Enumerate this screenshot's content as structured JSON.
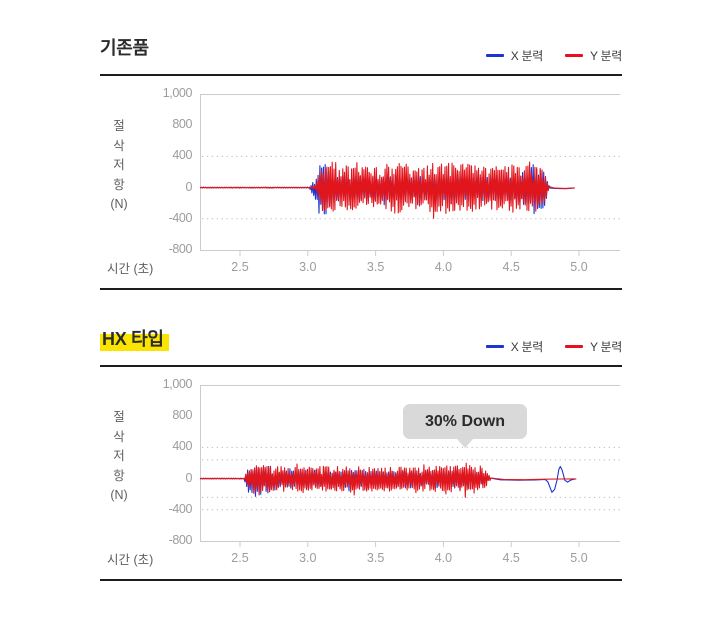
{
  "legend": {
    "x_label": "X 분력",
    "y_label": "Y 분력"
  },
  "axes": {
    "y_ticks": [
      "1,000",
      "800",
      "400",
      "0",
      "-400",
      "-800"
    ],
    "x_ticks": [
      "2.5",
      "3.0",
      "3.5",
      "4.0",
      "4.5",
      "5.0"
    ],
    "y_unit_chars": [
      "절",
      "삭",
      "저",
      "항",
      "(N)"
    ],
    "x_unit": "시간 (초)"
  },
  "colors": {
    "x_series": "#1b35cf",
    "y_series": "#e1151c",
    "legend_x": "#1b35cf",
    "legend_y": "#e8101e",
    "title_highlight": "#fbe400",
    "separator": "#1d1d1d",
    "axis_line": "#cccccc",
    "gridline": "#bdbdbd",
    "tick_label": "#9c9c9c",
    "callout_bg": "#d9d9d9",
    "callout_text": "#2b2b2b"
  },
  "sections": [
    {
      "title": "기존품",
      "highlighted": false
    },
    {
      "title": "HX 타입",
      "highlighted": true
    }
  ],
  "chart_data": [
    {
      "type": "line",
      "title": "기존품",
      "x_label": "시간 (초)",
      "y_label": "절삭저항(N)",
      "x_ticks": [
        2.5,
        3.0,
        3.5,
        4.0,
        4.5,
        5.0
      ],
      "y_tick_labels": [
        "1,000",
        "800",
        "400",
        "0",
        "-400",
        "-800"
      ],
      "y_tick_values": [
        1000,
        800,
        400,
        0,
        -400,
        -800
      ],
      "x_range": [
        2.2,
        5.31
      ],
      "grid": "dotted",
      "gridline_values": [
        400,
        -400
      ],
      "legend_position": "top-right",
      "description": "Flat near 0 N until ~3.05 s, heavy oscillation of roughly ±250 to ±430 N from ~3.1 s to ~4.77 s, then flat near 0 N until ~4.97 s",
      "envelope_units": "[time_s, upper_amplitude_N, lower_amplitude_N]",
      "series": [
        {
          "name": "X 분력",
          "color": "#1b35cf",
          "seed": 11,
          "noise_x_range": [
            2.205,
            4.785
          ],
          "envelope": [
            [
              2.205,
              5,
              5
            ],
            [
              3.01,
              5,
              5
            ],
            [
              3.05,
              80,
              150
            ],
            [
              3.08,
              300,
              380
            ],
            [
              3.13,
              280,
              360
            ],
            [
              3.2,
              150,
              180
            ],
            [
              3.6,
              150,
              170
            ],
            [
              4.1,
              150,
              170
            ],
            [
              4.55,
              170,
              200
            ],
            [
              4.66,
              280,
              340
            ],
            [
              4.73,
              260,
              330
            ],
            [
              4.77,
              60,
              80
            ],
            [
              4.785,
              8,
              8
            ]
          ],
          "tail": [
            [
              4.83,
              -12
            ],
            [
              4.9,
              -14
            ],
            [
              4.96,
              -6
            ]
          ]
        },
        {
          "name": "Y 분력",
          "color": "#e1151c",
          "seed": 12,
          "noise_x_range": [
            2.205,
            4.78
          ],
          "envelope": [
            [
              2.205,
              6,
              6
            ],
            [
              3.02,
              6,
              6
            ],
            [
              3.06,
              40,
              40
            ],
            [
              3.1,
              270,
              300
            ],
            [
              3.25,
              290,
              310
            ],
            [
              3.45,
              260,
              290
            ],
            [
              3.65,
              320,
              330
            ],
            [
              3.85,
              290,
              300
            ],
            [
              4.05,
              330,
              340
            ],
            [
              4.2,
              300,
              310
            ],
            [
              4.35,
              260,
              290
            ],
            [
              4.5,
              300,
              320
            ],
            [
              4.62,
              340,
              330
            ],
            [
              4.72,
              280,
              300
            ],
            [
              4.76,
              120,
              140
            ],
            [
              4.78,
              10,
              10
            ]
          ],
          "tail": [
            [
              4.82,
              -6
            ],
            [
              4.9,
              -10
            ],
            [
              4.97,
              -4
            ]
          ]
        }
      ],
      "annotation": null
    },
    {
      "type": "line",
      "title": "HX 타입",
      "x_label": "시간 (초)",
      "y_label": "절삭저항(N)",
      "x_ticks": [
        2.5,
        3.0,
        3.5,
        4.0,
        4.5,
        5.0
      ],
      "y_tick_labels": [
        "1,000",
        "800",
        "400",
        "0",
        "-400",
        "-800"
      ],
      "y_tick_values": [
        1000,
        800,
        400,
        0,
        -400,
        -800
      ],
      "x_range": [
        2.2,
        5.31
      ],
      "grid": "dotted",
      "gridline_values": [
        400,
        240,
        -240,
        -400
      ],
      "legend_position": "top-right",
      "description": "Flat near 0 N until ~2.55 s, reduced oscillation of roughly ±120 to ±250 N from ~2.56 s to ~4.34 s (about 30% lower than 기존품), then smooth line with one blue X-force wiggle (-175 N dip then +155 N peak) near 4.8-4.9 s",
      "envelope_units": "[time_s, upper_amplitude_N, lower_amplitude_N]",
      "series": [
        {
          "name": "X 분력",
          "color": "#1b35cf",
          "seed": 21,
          "noise_x_range": [
            2.205,
            4.34
          ],
          "envelope": [
            [
              2.205,
              5,
              5
            ],
            [
              2.53,
              5,
              5
            ],
            [
              2.56,
              120,
              220
            ],
            [
              2.62,
              140,
              260
            ],
            [
              2.7,
              120,
              200
            ],
            [
              2.8,
              110,
              130
            ],
            [
              3.2,
              105,
              120
            ],
            [
              3.6,
              105,
              120
            ],
            [
              4.0,
              110,
              125
            ],
            [
              4.2,
              115,
              130
            ],
            [
              4.3,
              70,
              80
            ],
            [
              4.34,
              12,
              12
            ]
          ],
          "tail": [
            [
              4.42,
              -15
            ],
            [
              4.55,
              -20
            ],
            [
              4.68,
              -18
            ],
            [
              4.75,
              -12
            ],
            [
              4.77,
              -40
            ],
            [
              4.8,
              -175
            ],
            [
              4.82,
              -140
            ],
            [
              4.838,
              -20
            ],
            [
              4.852,
              120
            ],
            [
              4.862,
              155
            ],
            [
              4.875,
              110
            ],
            [
              4.895,
              -20
            ],
            [
              4.915,
              -45
            ],
            [
              4.94,
              -18
            ],
            [
              4.97,
              -6
            ]
          ]
        },
        {
          "name": "Y 분력",
          "color": "#e1151c",
          "seed": 22,
          "noise_x_range": [
            2.205,
            4.35
          ],
          "envelope": [
            [
              2.205,
              6,
              6
            ],
            [
              2.53,
              6,
              6
            ],
            [
              2.56,
              90,
              100
            ],
            [
              2.62,
              170,
              180
            ],
            [
              2.8,
              160,
              165
            ],
            [
              3.0,
              150,
              160
            ],
            [
              3.2,
              165,
              160
            ],
            [
              3.45,
              150,
              160
            ],
            [
              3.7,
              155,
              165
            ],
            [
              3.9,
              150,
              160
            ],
            [
              4.05,
              175,
              180
            ],
            [
              4.17,
              205,
              190
            ],
            [
              4.27,
              170,
              165
            ],
            [
              4.32,
              90,
              90
            ],
            [
              4.35,
              15,
              15
            ]
          ],
          "tail": [
            [
              4.45,
              -12
            ],
            [
              4.6,
              -14
            ],
            [
              4.75,
              -8
            ],
            [
              4.85,
              -5
            ],
            [
              4.98,
              -4
            ]
          ]
        }
      ],
      "annotation": {
        "text": "30% Down",
        "points_to_x_s": 4.15
      }
    }
  ]
}
